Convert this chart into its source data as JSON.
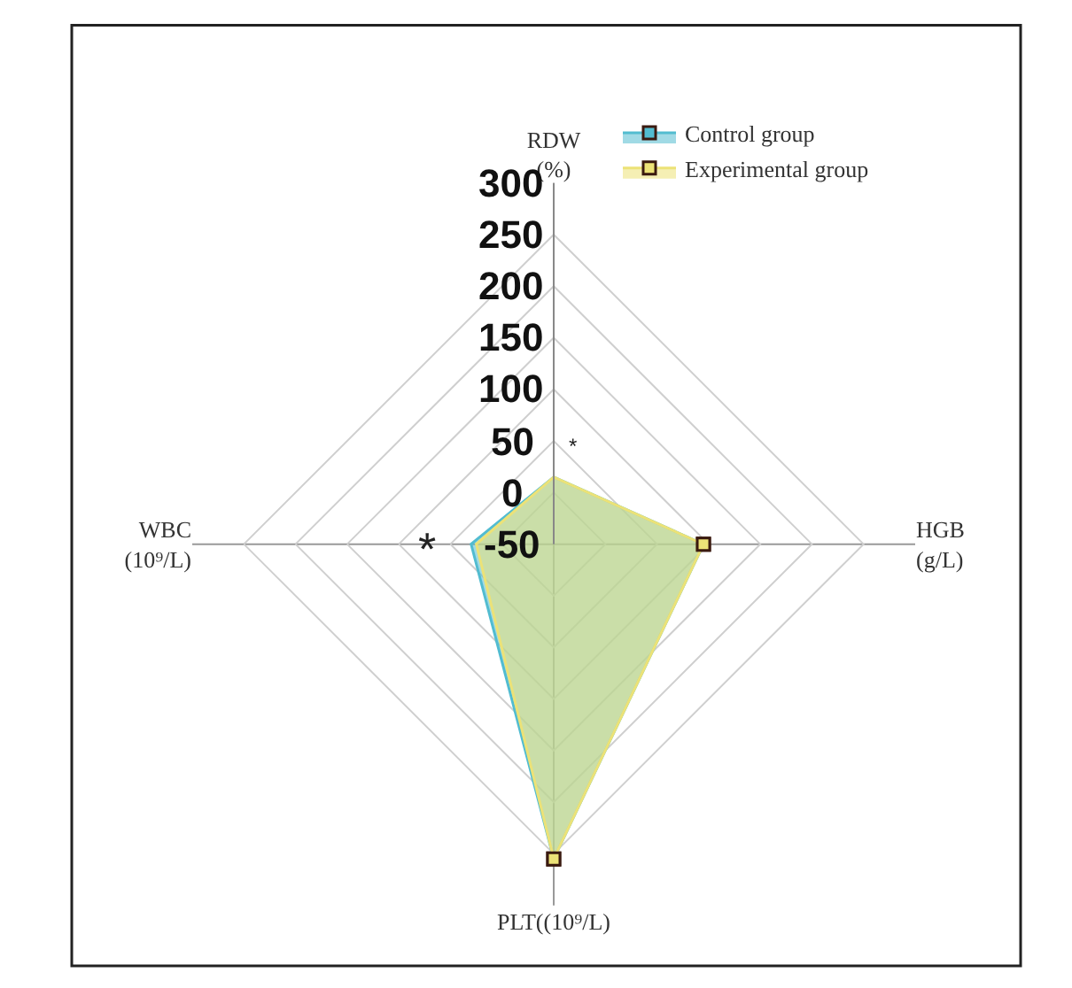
{
  "chart_data": {
    "type": "radar",
    "categories": [
      "RDW\n(%)",
      "HGB\n(g/L)",
      "PLT((10⁹/L)",
      "WBC\n(10⁹/L)"
    ],
    "series": [
      {
        "name": "Control group",
        "color": "#52bcd0",
        "values": [
          15,
          95,
          255,
          30
        ]
      },
      {
        "name": "Experimental group",
        "color": "#ece277",
        "values": [
          15,
          95,
          255,
          25
        ]
      }
    ],
    "ylim": [
      -50,
      300
    ],
    "yticks": [
      -50,
      0,
      50,
      100,
      150,
      200,
      250,
      300
    ],
    "grid": true,
    "legend": "top right",
    "marker": "square",
    "annotations": [
      "*",
      "*"
    ]
  }
}
